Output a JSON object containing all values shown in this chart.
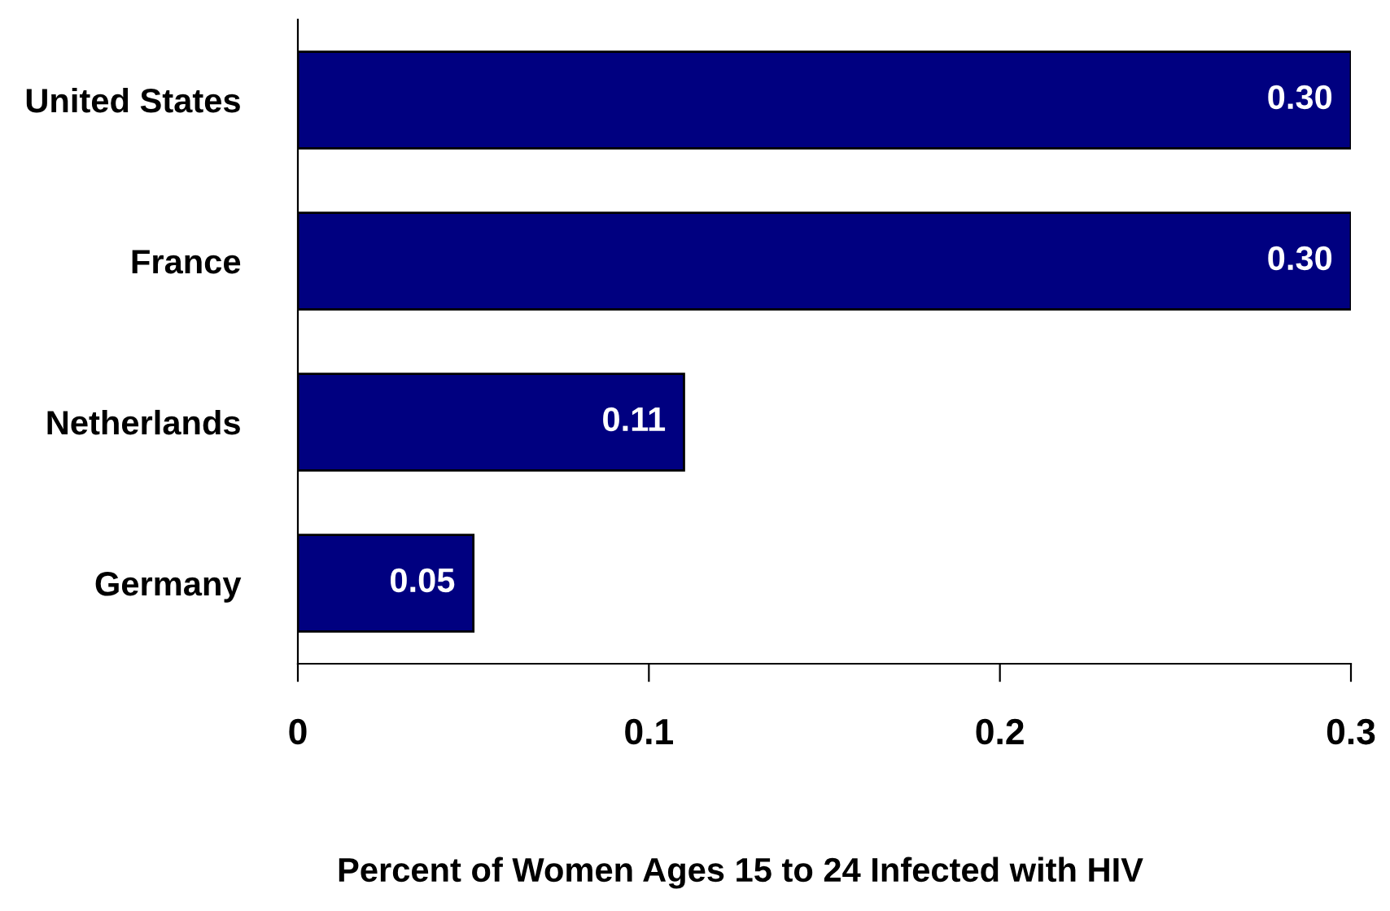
{
  "chart_data": {
    "type": "bar",
    "orientation": "horizontal",
    "xlabel": "Percent of Women Ages 15 to 24 Infected with HIV",
    "categories": [
      "United States",
      "France",
      "Netherlands",
      "Germany"
    ],
    "values": [
      0.3,
      0.3,
      0.11,
      0.05
    ],
    "value_labels": [
      "0.30",
      "0.30",
      "0.11",
      "0.05"
    ],
    "color": "#000080",
    "xlim": [
      0,
      0.3
    ],
    "xticks": [
      0,
      0.1,
      0.2,
      0.3
    ],
    "grid": false,
    "legend": false
  }
}
